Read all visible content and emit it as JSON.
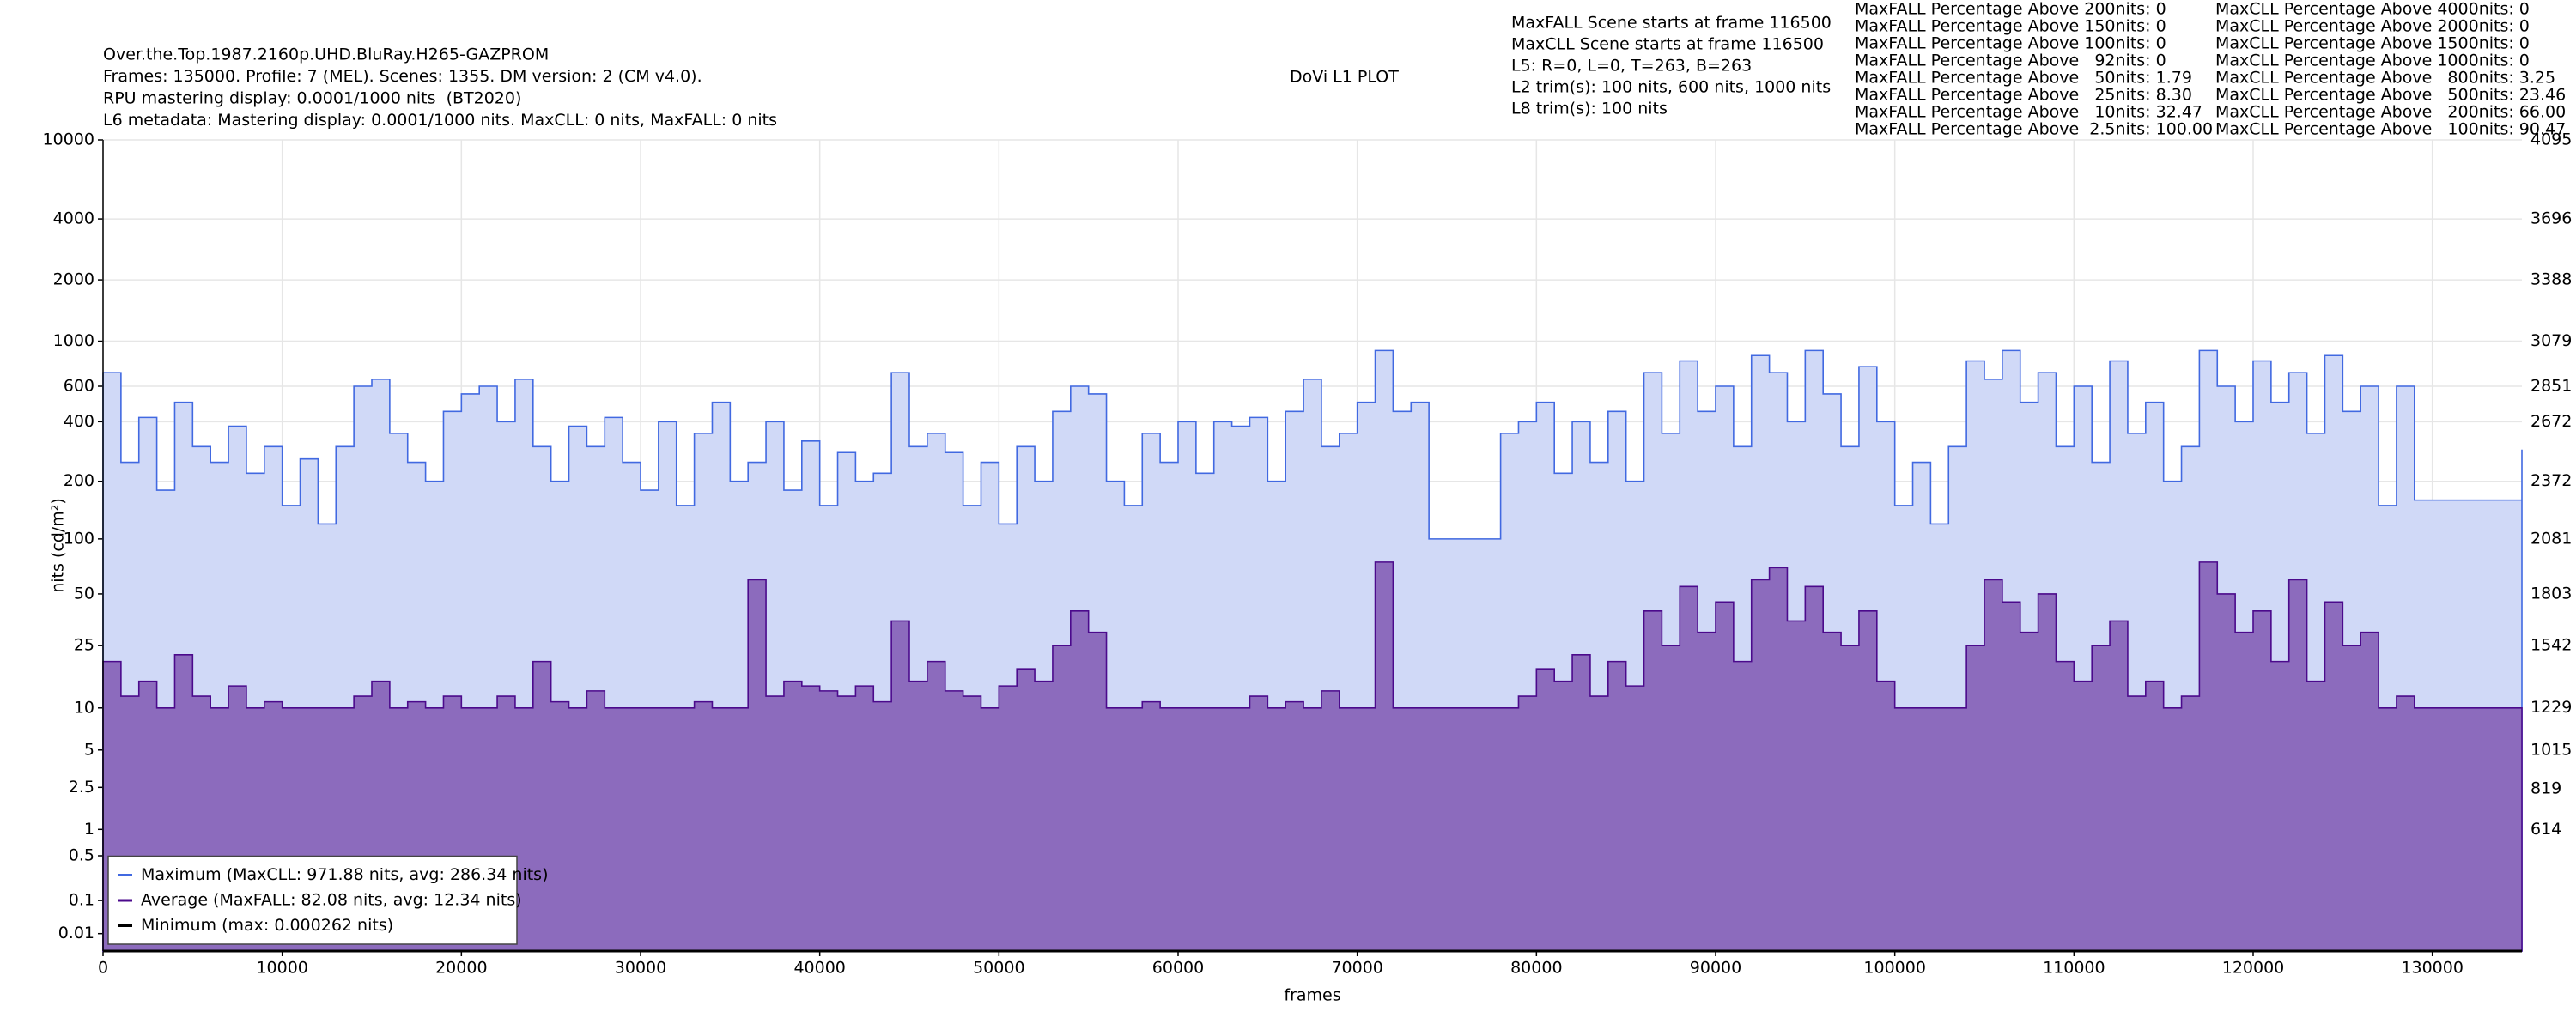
{
  "chart_data": {
    "type": "area",
    "title": "DoVi L1 PLOT",
    "header": [
      "Over.the.Top.1987.2160p.UHD.BluRay.H265-GAZPROM",
      "Frames: 135000. Profile: 7 (MEL). Scenes: 1355. DM version: 2 (CM v4.0).",
      "RPU mastering display: 0.0001/1000 nits  (BT2020)",
      "L6 metadata: Mastering display: 0.0001/1000 nits. MaxCLL: 0 nits, MaxFALL: 0 nits"
    ],
    "info": [
      "MaxFALL Scene starts at frame 116500",
      "MaxCLL Scene starts at frame 116500",
      "L5: R=0, L=0, T=263, B=263",
      "L2 trim(s): 100 nits, 600 nits, 1000 nits",
      "L8 trim(s): 100 nits"
    ],
    "stats_maxfall": [
      "MaxFALL Percentage Above 200nits: 0",
      "MaxFALL Percentage Above 150nits: 0",
      "MaxFALL Percentage Above 100nits: 0",
      "MaxFALL Percentage Above   92nits: 0",
      "MaxFALL Percentage Above   50nits: 1.79",
      "MaxFALL Percentage Above   25nits: 8.30",
      "MaxFALL Percentage Above   10nits: 32.47",
      "MaxFALL Percentage Above  2.5nits: 100.00"
    ],
    "stats_maxcll": [
      "MaxCLL Percentage Above 4000nits: 0",
      "MaxCLL Percentage Above 2000nits: 0",
      "MaxCLL Percentage Above 1500nits: 0",
      "MaxCLL Percentage Above 1000nits: 0",
      "MaxCLL Percentage Above   800nits: 3.25",
      "MaxCLL Percentage Above   500nits: 23.46",
      "MaxCLL Percentage Above   200nits: 66.00",
      "MaxCLL Percentage Above   100nits: 90.47"
    ],
    "x_label": "frames",
    "y_label": "nits (cd/m²)",
    "y_scale": "pq",
    "grid": true,
    "legend": "lower left",
    "xlim": [
      0,
      135000
    ],
    "xticks": [
      0,
      10000,
      20000,
      30000,
      40000,
      50000,
      60000,
      70000,
      80000,
      90000,
      100000,
      110000,
      120000,
      130000
    ],
    "ylim": [
      0,
      10000
    ],
    "yticks": [
      0.01,
      0.1,
      0.5,
      1,
      2.5,
      5,
      10,
      25,
      50,
      100,
      200,
      400,
      600,
      1000,
      2000,
      4000,
      10000
    ],
    "y2lim": [
      0,
      4095
    ],
    "y2ticks": [
      614,
      819,
      1015,
      1229,
      1542,
      1803,
      2081,
      2372,
      2672,
      2851,
      3079,
      3388,
      3696,
      4095
    ],
    "x": [
      0,
      1000,
      2000,
      3000,
      4000,
      5000,
      6000,
      7000,
      8000,
      9000,
      10000,
      11000,
      12000,
      13000,
      14000,
      15000,
      16000,
      17000,
      18000,
      19000,
      20000,
      21000,
      22000,
      23000,
      24000,
      25000,
      26000,
      27000,
      28000,
      29000,
      30000,
      31000,
      32000,
      33000,
      34000,
      35000,
      36000,
      37000,
      38000,
      39000,
      40000,
      41000,
      42000,
      43000,
      44000,
      45000,
      46000,
      47000,
      48000,
      49000,
      50000,
      51000,
      52000,
      53000,
      54000,
      55000,
      56000,
      57000,
      58000,
      59000,
      60000,
      61000,
      62000,
      63000,
      64000,
      65000,
      66000,
      67000,
      68000,
      69000,
      70000,
      71000,
      72000,
      73000,
      74000,
      75000,
      76000,
      77000,
      78000,
      79000,
      80000,
      81000,
      82000,
      83000,
      84000,
      85000,
      86000,
      87000,
      88000,
      89000,
      90000,
      91000,
      92000,
      93000,
      94000,
      95000,
      96000,
      97000,
      98000,
      99000,
      100000,
      101000,
      102000,
      103000,
      104000,
      105000,
      106000,
      107000,
      108000,
      109000,
      110000,
      111000,
      112000,
      113000,
      114000,
      115000,
      116000,
      117000,
      118000,
      119000,
      120000,
      121000,
      122000,
      123000,
      124000,
      125000,
      126000,
      127000,
      128000,
      129000,
      130000,
      131000,
      132000,
      133000,
      134000,
      135000
    ],
    "series": [
      {
        "name": "Maximum (MaxCLL: 971.88 nits, avg: 286.34 nits)",
        "color": "#4169e1",
        "fill": "#d0d9f7",
        "values": [
          700,
          250,
          420,
          180,
          500,
          300,
          250,
          380,
          220,
          300,
          150,
          260,
          120,
          300,
          600,
          650,
          350,
          250,
          200,
          450,
          550,
          600,
          400,
          650,
          300,
          200,
          380,
          300,
          420,
          250,
          180,
          400,
          150,
          350,
          500,
          200,
          250,
          400,
          180,
          320,
          150,
          280,
          200,
          220,
          700,
          300,
          350,
          280,
          150,
          250,
          120,
          300,
          200,
          450,
          600,
          550,
          200,
          150,
          350,
          250,
          400,
          220,
          400,
          380,
          420,
          200,
          450,
          650,
          300,
          350,
          500,
          900,
          450,
          500,
          100,
          100,
          100,
          100,
          350,
          400,
          500,
          220,
          400,
          250,
          450,
          200,
          700,
          350,
          800,
          450,
          600,
          300,
          850,
          700,
          400,
          900,
          550,
          300,
          750,
          400,
          150,
          250,
          120,
          300,
          800,
          650,
          900,
          500,
          700,
          300,
          600,
          250,
          800,
          350,
          500,
          200,
          300,
          900,
          600,
          400,
          800,
          500,
          700,
          350,
          850,
          450,
          600,
          150,
          600,
          160,
          160,
          160,
          160,
          160,
          160,
          290
        ]
      },
      {
        "name": "Average (MaxFALL: 82.08 nits, avg: 12.34 nits)",
        "color": "#4b0a8c",
        "fill": "#8c6bbd",
        "values": [
          20,
          12,
          15,
          10,
          22,
          12,
          10,
          14,
          10,
          11,
          10,
          10,
          10,
          10,
          12,
          15,
          10,
          11,
          10,
          12,
          10,
          10,
          12,
          10,
          20,
          11,
          10,
          13,
          10,
          10,
          10,
          10,
          10,
          11,
          10,
          10,
          60,
          12,
          15,
          14,
          13,
          12,
          14,
          11,
          35,
          15,
          20,
          13,
          12,
          10,
          14,
          18,
          15,
          25,
          40,
          30,
          10,
          10,
          11,
          10,
          10,
          10,
          10,
          10,
          12,
          10,
          11,
          10,
          13,
          10,
          10,
          75,
          10,
          10,
          10,
          10,
          10,
          10,
          10,
          12,
          18,
          15,
          22,
          12,
          20,
          14,
          40,
          25,
          55,
          30,
          45,
          20,
          60,
          70,
          35,
          55,
          30,
          25,
          40,
          15,
          10,
          10,
          10,
          10,
          25,
          60,
          45,
          30,
          50,
          20,
          15,
          25,
          35,
          12,
          15,
          10,
          12,
          75,
          50,
          30,
          40,
          20,
          60,
          15,
          45,
          25,
          30,
          10,
          12,
          10,
          10,
          10,
          10,
          10,
          10,
          10
        ]
      },
      {
        "name": "Minimum (max: 0.000262 nits)",
        "color": "#000000",
        "values": [
          0,
          0,
          0,
          0,
          0,
          0,
          0,
          0,
          0,
          0,
          0,
          0,
          0,
          0,
          0,
          0,
          0,
          0,
          0,
          0,
          0,
          0,
          0,
          0,
          0,
          0,
          0,
          0,
          0,
          0,
          0,
          0,
          0,
          0,
          0,
          0,
          0,
          0,
          0,
          0,
          0,
          0,
          0,
          0,
          0,
          0,
          0,
          0,
          0,
          0,
          0,
          0,
          0,
          0,
          0,
          0,
          0,
          0,
          0,
          0,
          0,
          0,
          0,
          0,
          0,
          0,
          0,
          0,
          0,
          0,
          0,
          0,
          0,
          0,
          0,
          0,
          0,
          0,
          0,
          0,
          0,
          0,
          0,
          0,
          0,
          0,
          0,
          0,
          0,
          0,
          0,
          0,
          0,
          0,
          0,
          0,
          0,
          0,
          0,
          0,
          0,
          0,
          0,
          0,
          0,
          0,
          0,
          0,
          0,
          0,
          0,
          0,
          0,
          0,
          0,
          0,
          0,
          0,
          0,
          0,
          0,
          0,
          0,
          0,
          0,
          0,
          0,
          0,
          0,
          0,
          0,
          0,
          0,
          0,
          0,
          0
        ]
      }
    ]
  }
}
